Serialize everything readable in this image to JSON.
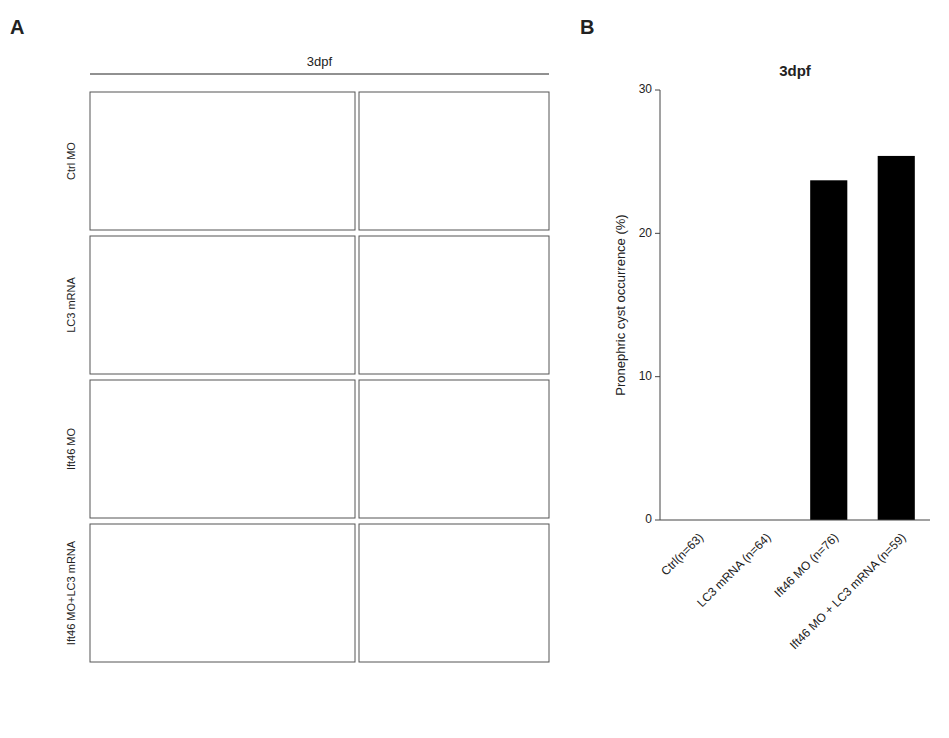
{
  "chart_data": {
    "type": "bar",
    "title": "3dpf",
    "categories": [
      "Ctrl(n=63)",
      "LC3 mRNA (n=64)",
      "Ift46 MO (n=76)",
      "Ift46 MO + LC3 mRNA (n=59)"
    ],
    "values": [
      0,
      0,
      23.7,
      25.4
    ],
    "colors": [
      "#000000",
      "#000000",
      "#000000",
      "#000000"
    ],
    "y_label": "Pronephric cyst occurrence (%)",
    "ylim": [
      0,
      30
    ],
    "yticks": [
      0,
      10,
      20,
      30
    ],
    "grid": false,
    "panel_labels": [
      "A",
      "B"
    ],
    "column_label": "3dpf",
    "row_labels": [
      "Ctrl MO",
      "LC3 mRNA",
      "Ift46 MO",
      "Ift46 MO+LC3 mRNA"
    ]
  }
}
